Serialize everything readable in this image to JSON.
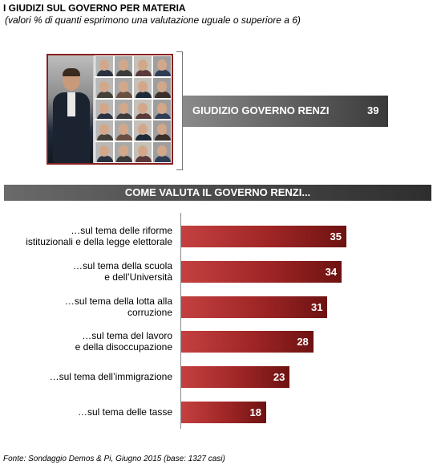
{
  "header": {
    "title": "I GIUDIZI SUL GOVERNO PER MATERIA",
    "subtitle": "(valori % di quanti esprimono una valutazione uguale o superiore a 6)"
  },
  "overall": {
    "label": "GIUDIZIO GOVERNO RENZI",
    "value": "39"
  },
  "section": {
    "label": "COME VALUTA IL GOVERNO RENZI..."
  },
  "chart_data": {
    "type": "bar",
    "orientation": "horizontal",
    "title": "",
    "xlabel": "",
    "ylabel": "",
    "xlim": [
      0,
      39
    ],
    "grid": false,
    "colors": {
      "bar": "#a22828",
      "overall_bar": "#6a6a6a",
      "section_bar": "#4a4a4a"
    },
    "categories": [
      [
        "…sul tema delle riforme",
        "istituzionali e della legge elettorale"
      ],
      [
        "…sul tema della scuola",
        "e dell’Università"
      ],
      [
        "…sul tema della lotta alla",
        "corruzione"
      ],
      [
        "…sul tema del lavoro",
        "e della disoccupazione"
      ],
      [
        "…sul tema dell’immigrazione"
      ],
      [
        "…sul tema delle tasse"
      ]
    ],
    "values": [
      35,
      34,
      31,
      28,
      23,
      18
    ]
  },
  "footer": {
    "source": "Fonte: Sondaggio Demos & Pi, Giugno 2015 (base: 1327 casi)"
  }
}
